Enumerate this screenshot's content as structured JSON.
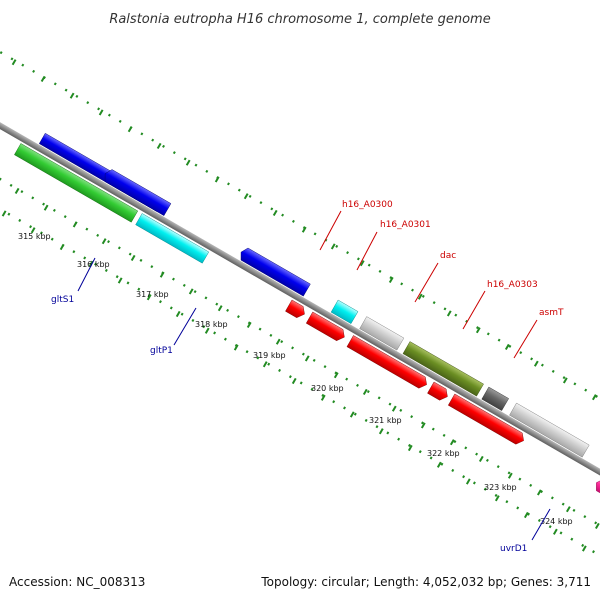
{
  "title": "Ralstonia eutropha H16 chromosome 1, complete genome",
  "accession": "Accession: NC_008313",
  "summary": "Topology: circular; Length: 4,052,032 bp; Genes: 3,711",
  "colors": {
    "background": "#ffffff",
    "backbone": "#8c8c8c",
    "tick": "#228b22",
    "forward_label": "#cc0000",
    "reverse_label": "#000099"
  },
  "kbp_ticks": [
    {
      "label": "315 kbp"
    },
    {
      "label": "316 kbp"
    },
    {
      "label": "317 kbp"
    },
    {
      "label": "318 kbp"
    },
    {
      "label": "319 kbp"
    },
    {
      "label": "320 kbp"
    },
    {
      "label": "321 kbp"
    },
    {
      "label": "322 kbp"
    },
    {
      "label": "323 kbp"
    },
    {
      "label": "324 kbp"
    }
  ],
  "gene_labels": [
    {
      "name": "gltS1",
      "strand": "reverse"
    },
    {
      "name": "gltP1",
      "strand": "reverse"
    },
    {
      "name": "h16_A0300",
      "strand": "forward"
    },
    {
      "name": "h16_A0301",
      "strand": "forward"
    },
    {
      "name": "dac",
      "strand": "forward"
    },
    {
      "name": "h16_A0303",
      "strand": "forward"
    },
    {
      "name": "asmT",
      "strand": "forward"
    },
    {
      "name": "uvrD1",
      "strand": "reverse"
    }
  ]
}
